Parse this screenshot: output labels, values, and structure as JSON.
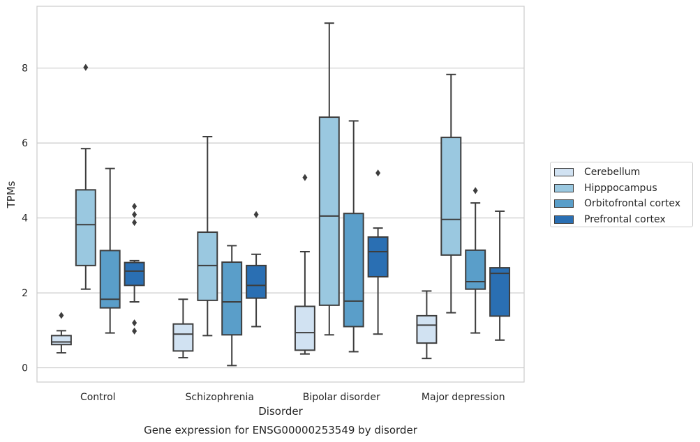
{
  "chart_data": {
    "type": "box",
    "title": "",
    "caption": "Gene expression for ENSG00000253549 by disorder",
    "xlabel": "Disorder",
    "ylabel": "TPMs",
    "ylim": [
      -0.38,
      9.65
    ],
    "yticks": [
      0,
      2,
      4,
      6,
      8
    ],
    "grid": "horizontal",
    "legend_placement": "right",
    "categories": [
      "Control",
      "Schizophrenia",
      "Bipolar disorder",
      "Major depression"
    ],
    "series": [
      {
        "name": "Cerebellum",
        "color": "#d1e2f2",
        "boxes": [
          {
            "whislo": 0.4,
            "q1": 0.62,
            "median": 0.69,
            "q3": 0.86,
            "whishi": 0.99,
            "fliers": [
              1.4
            ]
          },
          {
            "whislo": 0.27,
            "q1": 0.45,
            "median": 0.9,
            "q3": 1.17,
            "whishi": 1.83,
            "fliers": []
          },
          {
            "whislo": 0.37,
            "q1": 0.47,
            "median": 0.94,
            "q3": 1.64,
            "whishi": 3.1,
            "fliers": [
              5.08
            ]
          },
          {
            "whislo": 0.25,
            "q1": 0.66,
            "median": 1.14,
            "q3": 1.39,
            "whishi": 2.05,
            "fliers": []
          }
        ]
      },
      {
        "name": "Hipppocampus",
        "color": "#9ac8e0",
        "boxes": [
          {
            "whislo": 2.1,
            "q1": 2.73,
            "median": 3.82,
            "q3": 4.75,
            "whishi": 5.85,
            "fliers": [
              8.02
            ]
          },
          {
            "whislo": 0.86,
            "q1": 1.8,
            "median": 2.73,
            "q3": 3.62,
            "whishi": 6.17,
            "fliers": []
          },
          {
            "whislo": 0.88,
            "q1": 1.67,
            "median": 4.05,
            "q3": 6.69,
            "whishi": 9.2,
            "fliers": []
          },
          {
            "whislo": 1.47,
            "q1": 3.01,
            "median": 3.96,
            "q3": 6.15,
            "whishi": 7.83,
            "fliers": []
          }
        ]
      },
      {
        "name": "Orbitofrontal cortex",
        "color": "#5a9ec9",
        "boxes": [
          {
            "whislo": 0.93,
            "q1": 1.6,
            "median": 1.83,
            "q3": 3.13,
            "whishi": 5.32,
            "fliers": []
          },
          {
            "whislo": 0.06,
            "q1": 0.88,
            "median": 1.76,
            "q3": 2.82,
            "whishi": 3.26,
            "fliers": []
          },
          {
            "whislo": 0.43,
            "q1": 1.1,
            "median": 1.78,
            "q3": 4.12,
            "whishi": 6.59,
            "fliers": []
          },
          {
            "whislo": 0.93,
            "q1": 2.1,
            "median": 2.3,
            "q3": 3.14,
            "whishi": 4.4,
            "fliers": [
              4.73
            ]
          }
        ]
      },
      {
        "name": "Prefrontal cortex",
        "color": "#2a6fb3",
        "boxes": [
          {
            "whislo": 1.76,
            "q1": 2.2,
            "median": 2.58,
            "q3": 2.81,
            "whishi": 2.86,
            "fliers": [
              4.31,
              4.09,
              3.88,
              1.2,
              0.98
            ]
          },
          {
            "whislo": 1.1,
            "q1": 1.86,
            "median": 2.2,
            "q3": 2.73,
            "whishi": 3.03,
            "fliers": [
              4.09
            ]
          },
          {
            "whislo": 0.9,
            "q1": 2.43,
            "median": 3.1,
            "q3": 3.49,
            "whishi": 3.73,
            "fliers": [
              5.2
            ]
          },
          {
            "whislo": 0.74,
            "q1": 1.38,
            "median": 2.52,
            "q3": 2.67,
            "whishi": 4.18,
            "fliers": []
          }
        ]
      }
    ]
  }
}
